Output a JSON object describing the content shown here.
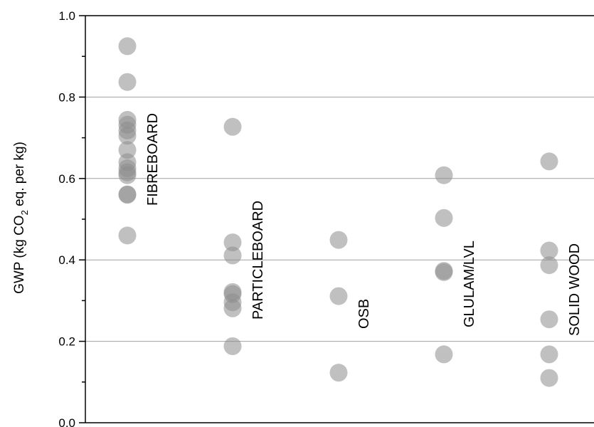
{
  "chart_data": {
    "type": "scatter",
    "title": "",
    "xlabel": "",
    "ylabel": "GWP (kg CO₂ eq. per kg)",
    "ylabel_parts": {
      "pre": "GWP (kg CO",
      "sub": "2",
      "post": " eq. per kg)"
    },
    "ylim": [
      0.0,
      1.0
    ],
    "yticks": [
      0.0,
      0.2,
      0.4,
      0.6,
      0.8,
      1.0
    ],
    "ytick_labels": [
      "0.0",
      "0.2",
      "0.4",
      "0.6",
      "0.8",
      "1.0"
    ],
    "grid": true,
    "legend": "none",
    "colors": {
      "marker": "#8c8c8c",
      "grid": "#a0a0a0",
      "axis": "#000000"
    },
    "marker_opacity": 0.55,
    "categories": [
      {
        "label": "FIBREBOARD",
        "values": [
          0.925,
          0.837,
          0.744,
          0.732,
          0.718,
          0.705,
          0.67,
          0.64,
          0.625,
          0.615,
          0.608,
          0.56,
          0.561,
          0.46
        ]
      },
      {
        "label": "PARTICLEBOARD",
        "values": [
          0.727,
          0.443,
          0.411,
          0.321,
          0.316,
          0.296,
          0.281,
          0.188
        ]
      },
      {
        "label": "OSB",
        "values": [
          0.449,
          0.311,
          0.123
        ]
      },
      {
        "label": "GLULAM/LVL",
        "values": [
          0.608,
          0.503,
          0.373,
          0.37,
          0.168
        ]
      },
      {
        "label": "SOLID WOOD",
        "values": [
          0.642,
          0.423,
          0.387,
          0.254,
          0.168,
          0.11
        ]
      }
    ]
  }
}
